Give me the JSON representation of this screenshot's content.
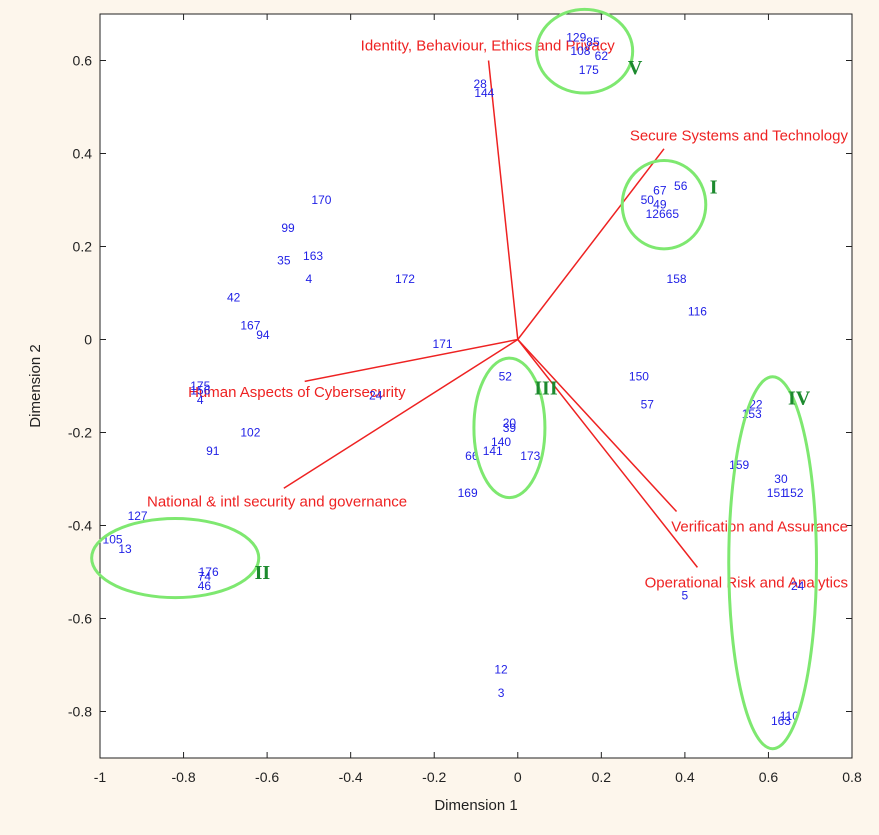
{
  "chart_data": {
    "type": "scatter",
    "xlabel": "Dimension 1",
    "ylabel": "Dimension 2",
    "xlim": [
      -1,
      0.8
    ],
    "ylim": [
      -0.9,
      0.7
    ],
    "xticks": [
      "-1",
      "-0.8",
      "-0.6",
      "-0.4",
      "-0.2",
      "0",
      "0.2",
      "0.4",
      "0.6",
      "0.8"
    ],
    "yticks": [
      "-0.8",
      "-0.6",
      "-0.4",
      "-0.2",
      "0",
      "0.2",
      "0.4",
      "0.6"
    ],
    "grid": false,
    "colors": {
      "points": "#1f1fe6",
      "vectors": "#ee2222",
      "clusters": "#7ee870",
      "cluster_labels": "#1c8a2e",
      "background": "#ffffff"
    },
    "points": [
      {
        "x": 0.14,
        "y": 0.65,
        "label": "129"
      },
      {
        "x": 0.18,
        "y": 0.64,
        "label": "85"
      },
      {
        "x": 0.15,
        "y": 0.62,
        "label": "108"
      },
      {
        "x": 0.2,
        "y": 0.61,
        "label": "62"
      },
      {
        "x": 0.17,
        "y": 0.58,
        "label": "175"
      },
      {
        "x": -0.09,
        "y": 0.55,
        "label": "28"
      },
      {
        "x": -0.08,
        "y": 0.53,
        "label": "144"
      },
      {
        "x": 0.39,
        "y": 0.33,
        "label": "56"
      },
      {
        "x": 0.34,
        "y": 0.32,
        "label": "67"
      },
      {
        "x": 0.31,
        "y": 0.3,
        "label": "50"
      },
      {
        "x": 0.34,
        "y": 0.29,
        "label": "49"
      },
      {
        "x": 0.33,
        "y": 0.27,
        "label": "126"
      },
      {
        "x": 0.37,
        "y": 0.27,
        "label": "65"
      },
      {
        "x": -0.47,
        "y": 0.3,
        "label": "170"
      },
      {
        "x": -0.55,
        "y": 0.24,
        "label": "99"
      },
      {
        "x": -0.49,
        "y": 0.18,
        "label": "163"
      },
      {
        "x": -0.56,
        "y": 0.17,
        "label": "35"
      },
      {
        "x": -0.5,
        "y": 0.13,
        "label": "4"
      },
      {
        "x": -0.27,
        "y": 0.13,
        "label": "172"
      },
      {
        "x": -0.68,
        "y": 0.09,
        "label": "42"
      },
      {
        "x": -0.64,
        "y": 0.03,
        "label": "167"
      },
      {
        "x": -0.61,
        "y": 0.01,
        "label": "94"
      },
      {
        "x": 0.38,
        "y": 0.13,
        "label": "158"
      },
      {
        "x": 0.43,
        "y": 0.06,
        "label": "116"
      },
      {
        "x": -0.18,
        "y": -0.01,
        "label": "171"
      },
      {
        "x": -0.03,
        "y": -0.08,
        "label": "52"
      },
      {
        "x": 0.29,
        "y": -0.08,
        "label": "150"
      },
      {
        "x": -0.76,
        "y": -0.1,
        "label": "175"
      },
      {
        "x": -0.76,
        "y": -0.11,
        "label": "156"
      },
      {
        "x": -0.76,
        "y": -0.13,
        "label": "4"
      },
      {
        "x": -0.34,
        "y": -0.12,
        "label": "24"
      },
      {
        "x": 0.31,
        "y": -0.14,
        "label": "57"
      },
      {
        "x": 0.57,
        "y": -0.14,
        "label": "22"
      },
      {
        "x": 0.56,
        "y": -0.16,
        "label": "153"
      },
      {
        "x": -0.64,
        "y": -0.2,
        "label": "102"
      },
      {
        "x": -0.02,
        "y": -0.18,
        "label": "20"
      },
      {
        "x": -0.02,
        "y": -0.19,
        "label": "39"
      },
      {
        "x": -0.04,
        "y": -0.22,
        "label": "140"
      },
      {
        "x": -0.06,
        "y": -0.24,
        "label": "141"
      },
      {
        "x": -0.11,
        "y": -0.25,
        "label": "66"
      },
      {
        "x": 0.03,
        "y": -0.25,
        "label": "173"
      },
      {
        "x": -0.73,
        "y": -0.24,
        "label": "91"
      },
      {
        "x": 0.53,
        "y": -0.27,
        "label": "159"
      },
      {
        "x": 0.63,
        "y": -0.3,
        "label": "30"
      },
      {
        "x": 0.62,
        "y": -0.33,
        "label": "151"
      },
      {
        "x": 0.66,
        "y": -0.33,
        "label": "152"
      },
      {
        "x": -0.12,
        "y": -0.33,
        "label": "169"
      },
      {
        "x": -0.91,
        "y": -0.38,
        "label": "127"
      },
      {
        "x": -0.97,
        "y": -0.43,
        "label": "105"
      },
      {
        "x": -0.94,
        "y": -0.45,
        "label": "13"
      },
      {
        "x": -0.74,
        "y": -0.5,
        "label": "176"
      },
      {
        "x": -0.75,
        "y": -0.51,
        "label": "74"
      },
      {
        "x": -0.75,
        "y": -0.53,
        "label": "46"
      },
      {
        "x": 0.67,
        "y": -0.53,
        "label": "24"
      },
      {
        "x": 0.4,
        "y": -0.55,
        "label": "5"
      },
      {
        "x": -0.04,
        "y": -0.71,
        "label": "12"
      },
      {
        "x": -0.04,
        "y": -0.76,
        "label": "3"
      },
      {
        "x": 0.65,
        "y": -0.81,
        "label": "110"
      },
      {
        "x": 0.63,
        "y": -0.82,
        "label": "163"
      }
    ],
    "vectors": [
      {
        "name": "Identity, Behaviour, Ethics and Privacy",
        "x": -0.07,
        "y": 0.6
      },
      {
        "name": "Secure Systems and Technology",
        "x": 0.35,
        "y": 0.41
      },
      {
        "name": "Human Aspects of Cybersecurity",
        "x": -0.51,
        "y": -0.09
      },
      {
        "name": "National & intl security and governance",
        "x": -0.56,
        "y": -0.32
      },
      {
        "name": "Verification and Assurance",
        "x": 0.38,
        "y": -0.37
      },
      {
        "name": "Operational Risk and Analytics",
        "x": 0.43,
        "y": -0.49
      }
    ],
    "vector_origin": {
      "x": 0.0,
      "y": 0.0
    },
    "clusters": [
      {
        "label": "I",
        "cx": 0.35,
        "cy": 0.29,
        "rx": 0.1,
        "ry": 0.095
      },
      {
        "label": "II",
        "cx": -0.82,
        "cy": -0.47,
        "rx": 0.2,
        "ry": 0.085
      },
      {
        "label": "III",
        "cx": -0.02,
        "cy": -0.19,
        "rx": 0.085,
        "ry": 0.15
      },
      {
        "label": "IV",
        "cx": 0.61,
        "cy": -0.48,
        "rx": 0.105,
        "ry": 0.4
      },
      {
        "label": "V",
        "cx": 0.16,
        "cy": 0.62,
        "rx": 0.115,
        "ry": 0.09
      }
    ]
  }
}
